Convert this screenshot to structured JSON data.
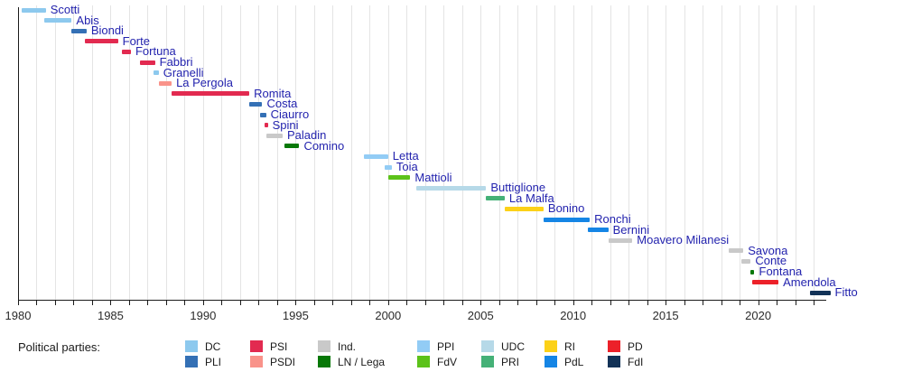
{
  "chart_data": {
    "type": "timeline",
    "description": "Timeline of Italian ministers for European affairs, colored by political party",
    "x_axis": {
      "start": 1980,
      "end": 2024,
      "tick_interval_years": 1,
      "labeled_ticks": [
        "1980",
        "1985",
        "1990",
        "1995",
        "2000",
        "2005",
        "2010",
        "2015",
        "2020"
      ],
      "grid": true
    },
    "ministers": [
      {
        "name": "Scotti",
        "party": "DC",
        "start": 1980.2,
        "end": 1981.5
      },
      {
        "name": "Abis",
        "party": "DC",
        "start": 1981.4,
        "end": 1982.9
      },
      {
        "name": "Biondi",
        "party": "PLI",
        "start": 1982.9,
        "end": 1983.7
      },
      {
        "name": "Forte",
        "party": "PSI",
        "start": 1983.6,
        "end": 1985.4
      },
      {
        "name": "Fortuna",
        "party": "PSI",
        "start": 1985.6,
        "end": 1986.1
      },
      {
        "name": "Fabbri",
        "party": "PSI",
        "start": 1986.6,
        "end": 1987.4
      },
      {
        "name": "Granelli",
        "party": "DC",
        "start": 1987.3,
        "end": 1987.6
      },
      {
        "name": "La Pergola",
        "party": "PSDI",
        "start": 1987.6,
        "end": 1988.3
      },
      {
        "name": "Romita",
        "party": "PSI",
        "start": 1988.3,
        "end": 1992.5
      },
      {
        "name": "Costa",
        "party": "PLI",
        "start": 1992.5,
        "end": 1993.2
      },
      {
        "name": "Ciaurro",
        "party": "PLI",
        "start": 1993.1,
        "end": 1993.4
      },
      {
        "name": "Spini",
        "party": "PSI",
        "start": 1993.3,
        "end": 1993.5
      },
      {
        "name": "Paladin",
        "party": "Ind.",
        "start": 1993.4,
        "end": 1994.3
      },
      {
        "name": "Comino",
        "party": "LN / Lega",
        "start": 1994.4,
        "end": 1995.2
      },
      {
        "name": "Letta",
        "party": "PPI",
        "start": 1998.7,
        "end": 2000.0
      },
      {
        "name": "Toia",
        "party": "PPI",
        "start": 1999.8,
        "end": 2000.2
      },
      {
        "name": "Mattioli",
        "party": "FdV",
        "start": 2000.0,
        "end": 2001.2
      },
      {
        "name": "Buttiglione",
        "party": "UDC",
        "start": 2001.5,
        "end": 2005.3
      },
      {
        "name": "La Malfa",
        "party": "PRI",
        "start": 2005.3,
        "end": 2006.3
      },
      {
        "name": "Bonino",
        "party": "RI",
        "start": 2006.3,
        "end": 2008.4
      },
      {
        "name": "Ronchi",
        "party": "PdL",
        "start": 2008.4,
        "end": 2010.9
      },
      {
        "name": "Bernini",
        "party": "PdL",
        "start": 2010.8,
        "end": 2011.9
      },
      {
        "name": "Moavero Milanesi",
        "party": "Ind.",
        "start": 2011.9,
        "end": 2013.2
      },
      {
        "name": "Savona",
        "party": "Ind.",
        "start": 2018.4,
        "end": 2019.2
      },
      {
        "name": "Conte",
        "party": "Ind.",
        "start": 2019.1,
        "end": 2019.6
      },
      {
        "name": "Fontana",
        "party": "LN / Lega",
        "start": 2019.6,
        "end": 2019.8
      },
      {
        "name": "Amendola",
        "party": "PD",
        "start": 2019.7,
        "end": 2021.1
      },
      {
        "name": "Fitto",
        "party": "FdI",
        "start": 2022.8,
        "end": 2023.9
      }
    ],
    "party_colors": {
      "DC": "#8dc9ee",
      "PLI": "#3470b5",
      "PSI": "#e22a50",
      "PSDI": "#f9938a",
      "Ind.": "#c9c9c9",
      "LN / Lega": "#077807",
      "PPI": "#92ccf5",
      "FdV": "#5cc21a",
      "UDC": "#b6d9e8",
      "PRI": "#45b177",
      "RI": "#fcd118",
      "PdL": "#1585e5",
      "PD": "#ec2129",
      "FdI": "#123257"
    }
  },
  "legend": {
    "title": "Political parties:",
    "columns": [
      [
        "DC",
        "PLI"
      ],
      [
        "PSI",
        "PSDI"
      ],
      [
        "Ind.",
        "LN / Lega"
      ],
      [
        "PPI",
        "FdV"
      ],
      [
        "UDC",
        "PRI"
      ],
      [
        "RI",
        "PdL"
      ],
      [
        "PD",
        "FdI"
      ]
    ]
  }
}
